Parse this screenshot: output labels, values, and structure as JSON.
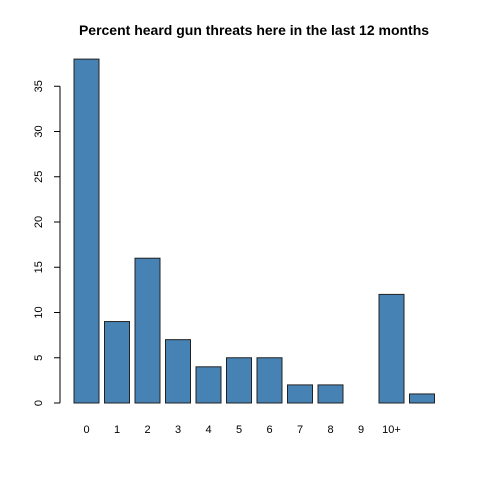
{
  "chart_data": {
    "type": "bar",
    "title": "Percent heard gun threats here in the last 12 months",
    "xlabel": "",
    "ylabel": "",
    "categories": [
      "0",
      "1",
      "2",
      "3",
      "4",
      "5",
      "6",
      "7",
      "8",
      "9",
      "10+",
      ""
    ],
    "values": [
      38,
      9,
      16,
      7,
      4,
      5,
      5,
      2,
      2,
      0,
      12,
      1
    ],
    "ylim": [
      0,
      38
    ],
    "yticks": [
      0,
      5,
      10,
      15,
      20,
      25,
      30,
      35
    ],
    "bar_color": "#4682B4",
    "grid": false
  }
}
